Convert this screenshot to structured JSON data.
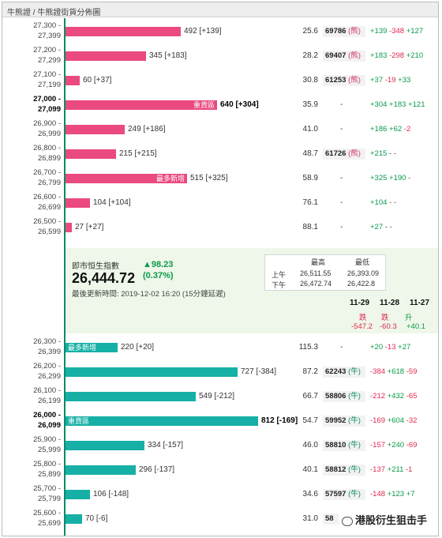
{
  "breadcrumb": "牛熊證 / 牛熊證街貨分佈圖",
  "bull_rows": [
    {
      "r1": "27,300 -",
      "r2": "27,399",
      "count": "492",
      "delta": "[+139]",
      "frac": 0.2,
      "pct": "25.6",
      "code": "69786",
      "code_sfx": "(熊)",
      "c1": "+139",
      "c2": "-348",
      "c3": "+127",
      "s1": "u",
      "s2": "dn",
      "s3": "u"
    },
    {
      "r1": "27,200 -",
      "r2": "27,299",
      "count": "345",
      "delta": "[+183]",
      "frac": 0.14,
      "pct": "28.2",
      "code": "69407",
      "code_sfx": "(熊)",
      "c1": "+183",
      "c2": "-298",
      "c3": "+210",
      "s1": "u",
      "s2": "dn",
      "s3": "u"
    },
    {
      "r1": "27,100 -",
      "r2": "27,199",
      "count": "60",
      "delta": "[+37]",
      "frac": 0.024,
      "pct": "30.8",
      "code": "61253",
      "code_sfx": "(熊)",
      "c1": "+37",
      "c2": "-19",
      "c3": "+33",
      "s1": "u",
      "s2": "dn",
      "s3": "u"
    },
    {
      "r1": "27,000 -",
      "r2": "27,099",
      "count": "640",
      "delta": "[+304]",
      "frac": 0.262,
      "pct": "35.9",
      "tag": "重貨區",
      "bold": true,
      "dash": "-",
      "c1": "+304",
      "c2": "+183",
      "c3": "+121",
      "s1": "u",
      "s2": "u",
      "s3": "u"
    },
    {
      "r1": "26,900 -",
      "r2": "26,999",
      "count": "249",
      "delta": "[+186]",
      "frac": 0.102,
      "pct": "41.0",
      "dash": "-",
      "c1": "+186",
      "c2": "+62",
      "c3": "-2",
      "s1": "u",
      "s2": "u",
      "s3": "dn"
    },
    {
      "r1": "26,800 -",
      "r2": "26,899",
      "count": "215",
      "delta": "[+215]",
      "frac": 0.088,
      "pct": "48.7",
      "code": "61726",
      "code_sfx": "(熊)",
      "c1": "+215",
      "c2": "-",
      "c3": "-",
      "s1": "u",
      "s2": "nt",
      "s3": "nt"
    },
    {
      "r1": "26,700 -",
      "r2": "26,799",
      "count": "515",
      "delta": "[+325]",
      "frac": 0.21,
      "pct": "58.9",
      "tag": "最多新增",
      "dash": "-",
      "c1": "+325",
      "c2": "+190",
      "c3": "-",
      "s1": "u",
      "s2": "u",
      "s3": "nt"
    },
    {
      "r1": "26,600 -",
      "r2": "26,699",
      "count": "104",
      "delta": "[+104]",
      "frac": 0.043,
      "pct": "76.1",
      "dash": "-",
      "c1": "+104",
      "c2": "-",
      "c3": "-",
      "s1": "u",
      "s2": "nt",
      "s3": "nt"
    },
    {
      "r1": "26,500 -",
      "r2": "26,599",
      "count": "27",
      "delta": "[+27]",
      "frac": 0.011,
      "pct": "88.1",
      "dash": "-",
      "c1": "+27",
      "c2": "-",
      "c3": "-",
      "s1": "u",
      "s2": "nt",
      "s3": "nt"
    }
  ],
  "index": {
    "title": "即市恒生指數",
    "value": "26,444.72",
    "change": "▲98.23",
    "change_pct": "(0.37%)",
    "updated": "最後更新時間: 2019-12-02 16:20 (15分鐘延遲)",
    "hl_high": "最高",
    "hl_low": "最低",
    "am": "上午",
    "am_high": "26,511.55",
    "am_low": "26,393.09",
    "pm": "下午",
    "pm_high": "26,472.74",
    "pm_low": "26,422.8",
    "dates": [
      "11-29",
      "11-28",
      "11-27"
    ],
    "dir": [
      "跌",
      "跌",
      "升"
    ],
    "diffs": [
      "-547.2",
      "-60.3",
      "+40.1"
    ]
  },
  "bear_rows": [
    {
      "r1": "26,300 -",
      "r2": "26,399",
      "count": "220",
      "delta": "[+20]",
      "frac": 0.09,
      "pct": "115.3",
      "tag": "最多新增",
      "dash": "-",
      "c1": "+20",
      "c2": "-13",
      "c3": "+27",
      "s1": "u",
      "s2": "dn",
      "s3": "u"
    },
    {
      "r1": "26,200 -",
      "r2": "26,299",
      "count": "727",
      "delta": "[-384]",
      "frac": 0.298,
      "pct": "87.2",
      "code": "62243",
      "code_sfx": "(牛)",
      "c1": "-384",
      "c2": "+618",
      "c3": "-59",
      "s1": "dn",
      "s2": "u",
      "s3": "dn"
    },
    {
      "r1": "26,100 -",
      "r2": "26,199",
      "count": "549",
      "delta": "[-212]",
      "frac": 0.225,
      "pct": "66.7",
      "code": "58806",
      "code_sfx": "(牛)",
      "c1": "-212",
      "c2": "+432",
      "c3": "-65",
      "s1": "dn",
      "s2": "u",
      "s3": "dn"
    },
    {
      "r1": "26,000 -",
      "r2": "26,099",
      "count": "812",
      "delta": "[-169]",
      "frac": 0.333,
      "pct": "54.7",
      "code": "59952",
      "code_sfx": "(牛)",
      "tag": "重貨區",
      "bold": true,
      "c1": "-169",
      "c2": "+604",
      "c3": "-32",
      "s1": "dn",
      "s2": "u",
      "s3": "dn"
    },
    {
      "r1": "25,900 -",
      "r2": "25,999",
      "count": "334",
      "delta": "[-157]",
      "frac": 0.137,
      "pct": "46.0",
      "code": "58810",
      "code_sfx": "(牛)",
      "c1": "-157",
      "c2": "+240",
      "c3": "-69",
      "s1": "dn",
      "s2": "u",
      "s3": "dn"
    },
    {
      "r1": "25,800 -",
      "r2": "25,899",
      "count": "296",
      "delta": "[-137]",
      "frac": 0.121,
      "pct": "40.1",
      "code": "58812",
      "code_sfx": "(牛)",
      "c1": "-137",
      "c2": "+211",
      "c3": "-1",
      "s1": "dn",
      "s2": "u",
      "s3": "dn"
    },
    {
      "r1": "25,700 -",
      "r2": "25,799",
      "count": "106",
      "delta": "[-148]",
      "frac": 0.043,
      "pct": "34.6",
      "code": "57597",
      "code_sfx": "(牛)",
      "c1": "-148",
      "c2": "+123",
      "c3": "+7",
      "s1": "dn",
      "s2": "u",
      "s3": "u"
    },
    {
      "r1": "25,600 -",
      "r2": "25,699",
      "count": "70",
      "delta": "[-6]",
      "frac": 0.029,
      "pct": "31.0",
      "code": "58",
      "code_sfx": "",
      "c1": "",
      "c2": "",
      "c3": "",
      "s1": "nt",
      "s2": "nt",
      "s3": "nt"
    }
  ],
  "watermark": "港股衍生狙击手",
  "colors": {
    "bull": "#ea4a7f",
    "bear": "#16b0a6",
    "up": "#0a9a4a",
    "down": "#e0284f",
    "panel": "#eef7e9"
  }
}
